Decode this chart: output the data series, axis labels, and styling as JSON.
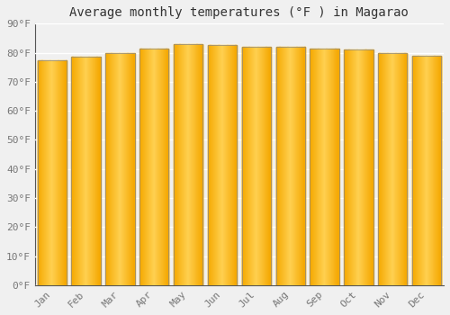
{
  "title": "Average monthly temperatures (°F ) in Magarao",
  "months": [
    "Jan",
    "Feb",
    "Mar",
    "Apr",
    "May",
    "Jun",
    "Jul",
    "Aug",
    "Sep",
    "Oct",
    "Nov",
    "Dec"
  ],
  "values": [
    77.5,
    78.5,
    80.0,
    81.5,
    83.0,
    82.5,
    82.0,
    82.0,
    81.5,
    81.0,
    80.0,
    79.0
  ],
  "bar_color_center": "#FFD150",
  "bar_color_edge": "#F5A800",
  "bar_border_color": "#888888",
  "background_color": "#f0f0f0",
  "plot_bg_color": "#f0f0f0",
  "grid_color": "#ffffff",
  "ylim": [
    0,
    90
  ],
  "yticks": [
    0,
    10,
    20,
    30,
    40,
    50,
    60,
    70,
    80,
    90
  ],
  "ytick_labels": [
    "0°F",
    "10°F",
    "20°F",
    "30°F",
    "40°F",
    "50°F",
    "60°F",
    "70°F",
    "80°F",
    "90°F"
  ],
  "title_fontsize": 10,
  "tick_fontsize": 8,
  "font_family": "monospace",
  "bar_width": 0.85
}
